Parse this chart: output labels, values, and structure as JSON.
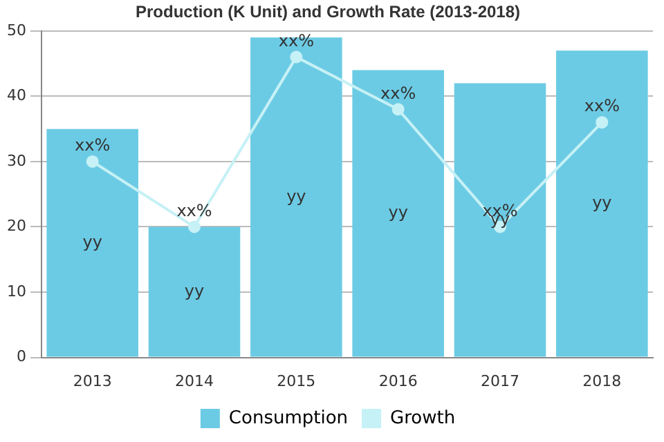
{
  "chart_data": {
    "type": "bar",
    "title": "Production (K Unit) and Growth Rate (2013-2018)",
    "categories": [
      "2013",
      "2014",
      "2015",
      "2016",
      "2017",
      "2018"
    ],
    "series": [
      {
        "name": "Consumption",
        "color": "#6ccbe4",
        "values": [
          35,
          20,
          49,
          44,
          42,
          47
        ],
        "value_labels": [
          "yy",
          "yy",
          "yy",
          "yy",
          "yy",
          "yy"
        ]
      },
      {
        "name": "Growth",
        "type": "line",
        "color": "#c6f1f6",
        "marker": "circle",
        "values": [
          30,
          20,
          46,
          38,
          20,
          36
        ],
        "value_labels": [
          "xx%",
          "xx%",
          "xx%",
          "xx%",
          "xx%",
          "xx%"
        ]
      }
    ],
    "ylim": [
      0,
      50
    ],
    "yticks": [
      0,
      10,
      20,
      30,
      40,
      50
    ],
    "grid": "y",
    "legend": "bottom"
  }
}
